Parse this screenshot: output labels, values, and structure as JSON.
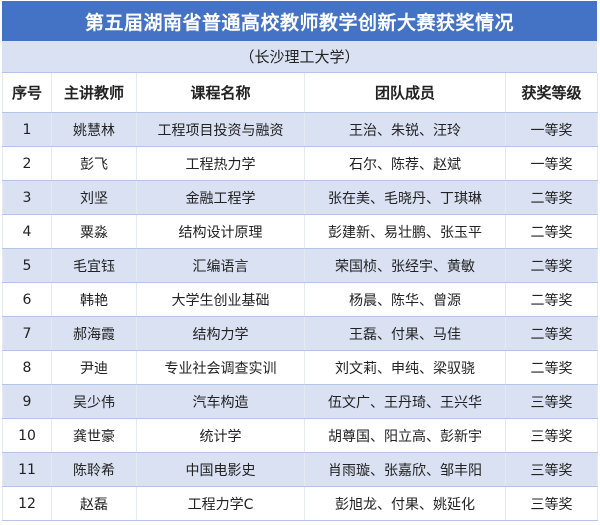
{
  "title": "第五届湖南省普通高校教师教学创新大赛获奖情况",
  "subtitle": "（长沙理工大学）",
  "colors": {
    "title_bg": "#4472C4",
    "band": "#D9E1F2"
  },
  "headers": [
    "序号",
    "主讲教师",
    "课程名称",
    "团队成员",
    "获奖等级"
  ],
  "rows": [
    [
      "1",
      "姚慧林",
      "工程项目投资与融资",
      "王治、朱锐、汪玲",
      "一等奖"
    ],
    [
      "2",
      "彭飞",
      "工程热力学",
      "石尔、陈荐、赵斌",
      "一等奖"
    ],
    [
      "3",
      "刘坚",
      "金融工程学",
      "张在美、毛晓丹、丁琪琳",
      "二等奖"
    ],
    [
      "4",
      "粟淼",
      "结构设计原理",
      "彭建新、易壮鹏、张玉平",
      "二等奖"
    ],
    [
      "5",
      "毛宜钰",
      "汇编语言",
      "荣国桢、张经宇、黄敏",
      "二等奖"
    ],
    [
      "6",
      "韩艳",
      "大学生创业基础",
      "杨晨、陈华、曾源",
      "二等奖"
    ],
    [
      "7",
      "郝海霞",
      "结构力学",
      "王磊、付果、马佳",
      "二等奖"
    ],
    [
      "8",
      "尹迪",
      "专业社会调查实训",
      "刘文莉、申纯、梁驭骁",
      "二等奖"
    ],
    [
      "9",
      "吴少伟",
      "汽车构造",
      "伍文广、王丹琦、王兴华",
      "三等奖"
    ],
    [
      "10",
      "龚世豪",
      "统计学",
      "胡尊国、阳立高、彭新宇",
      "三等奖"
    ],
    [
      "11",
      "陈聆希",
      "中国电影史",
      "肖雨璇、张嘉欣、邹丰阳",
      "三等奖"
    ],
    [
      "12",
      "赵磊",
      "工程力学C",
      "彭旭龙、付果、姚延化",
      "三等奖"
    ]
  ]
}
